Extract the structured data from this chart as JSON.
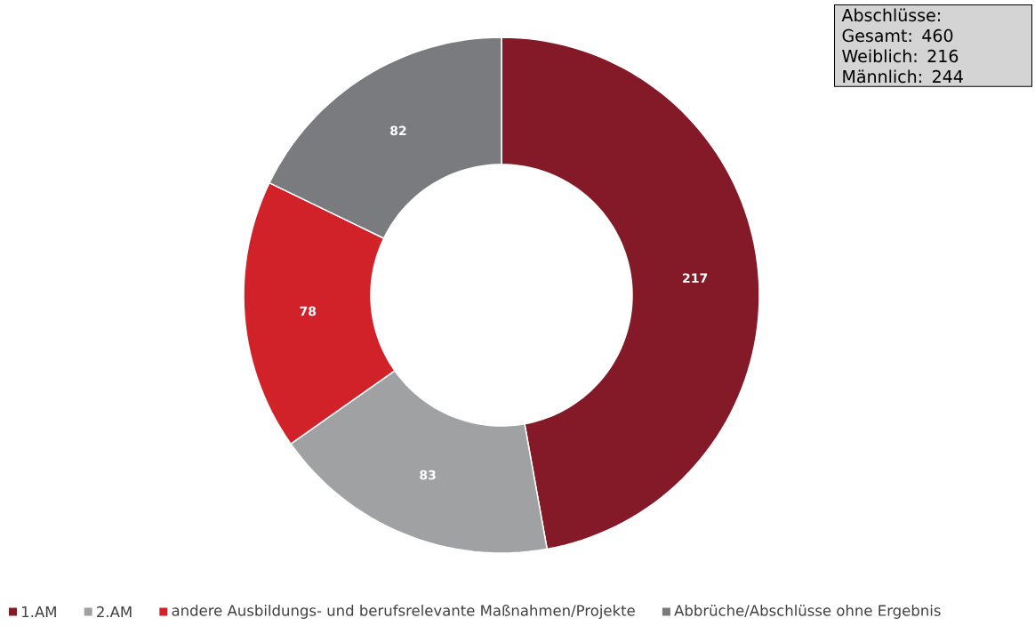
{
  "chart_data": {
    "type": "donut",
    "categories": [
      "1.AM",
      "2.AM",
      "andere Ausbildungs- und berufsrelevante Maßnahmen/Projekte",
      "Abbrüche/Abschlüsse ohne Ergebnis"
    ],
    "values": [
      217,
      83,
      78,
      82
    ],
    "colors": [
      "#841a28",
      "#a0a1a3",
      "#d12229",
      "#7a7b7f"
    ],
    "data_labels": true,
    "legend": "bottom",
    "annotations": [
      "Abschlüsse:",
      "Gesamt: 460",
      "Weiblich: 216",
      "Männlich: 244"
    ]
  }
}
